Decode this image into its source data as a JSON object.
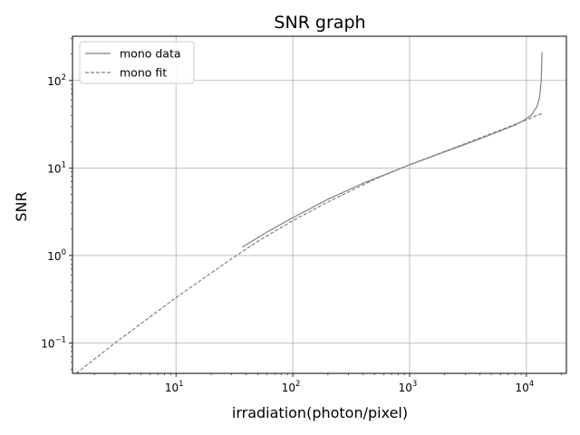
{
  "chart_data": {
    "type": "line",
    "title": "SNR graph",
    "xlabel": "irradiation(photon/pixel)",
    "ylabel": "SNR",
    "xscale": "log",
    "yscale": "log",
    "xlim": [
      1.3,
      22000
    ],
    "ylim": [
      0.045,
      320
    ],
    "grid": true,
    "legend_position": "top-left",
    "x_ticks": [
      {
        "base": "10",
        "exp": "1",
        "value": 10
      },
      {
        "base": "10",
        "exp": "2",
        "value": 100
      },
      {
        "base": "10",
        "exp": "3",
        "value": 1000
      },
      {
        "base": "10",
        "exp": "4",
        "value": 10000
      }
    ],
    "y_ticks": [
      {
        "base": "10",
        "exp": "−1",
        "value": 0.1
      },
      {
        "base": "10",
        "exp": "0",
        "value": 1
      },
      {
        "base": "10",
        "exp": "1",
        "value": 10
      },
      {
        "base": "10",
        "exp": "2",
        "value": 100
      }
    ],
    "series": [
      {
        "name": "mono data",
        "style": "solid",
        "color": "#808080",
        "x": [
          37,
          60,
          100,
          200,
          400,
          700,
          1000,
          2000,
          4000,
          8000,
          9500,
          11000,
          12300,
          13000,
          13400,
          13600
        ],
        "y": [
          1.25,
          1.85,
          2.7,
          4.4,
          6.7,
          9.0,
          10.9,
          15.3,
          21.5,
          31.0,
          35.0,
          40.0,
          50.0,
          65.0,
          100.0,
          210.0
        ]
      },
      {
        "name": "mono fit",
        "style": "dashed",
        "color": "#808080",
        "x": [
          1.4,
          3,
          10,
          30,
          50,
          100,
          200,
          500,
          1000,
          3000,
          8000,
          13600
        ],
        "y": [
          0.045,
          0.1,
          0.33,
          0.92,
          1.45,
          2.5,
          4.1,
          7.4,
          10.9,
          19.0,
          31.5,
          42.0
        ]
      }
    ]
  }
}
